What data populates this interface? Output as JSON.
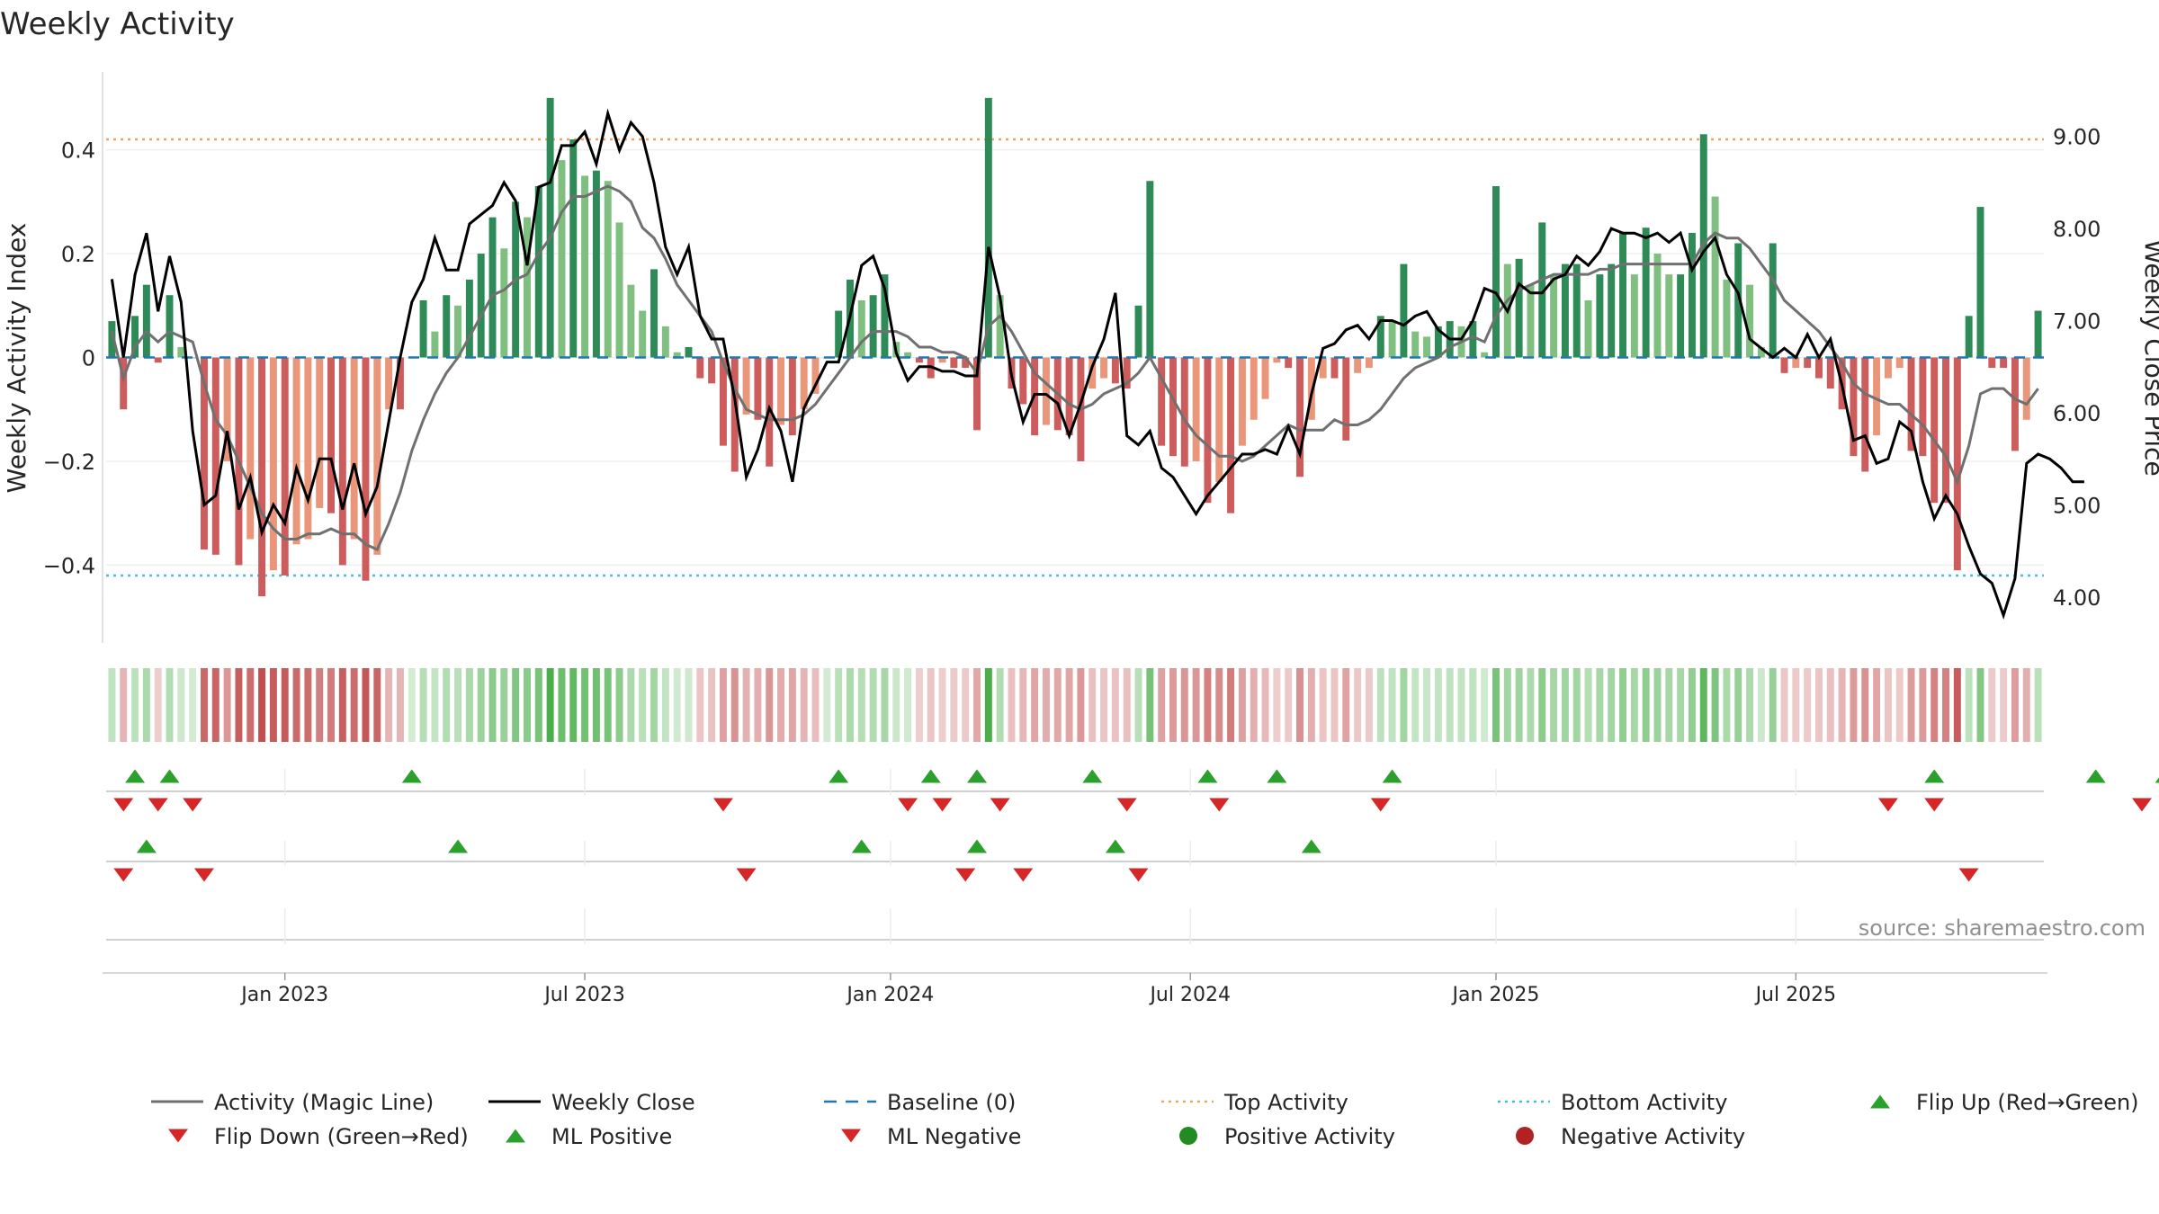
{
  "chart_data": {
    "type": "bar",
    "title": "Weekly Activity",
    "ylabel_left": "Weekly Activity Index",
    "ylabel_right": "Weekly Close Price",
    "left_yticks": [
      {
        "value": 0.4,
        "label": "0.4"
      },
      {
        "value": 0.2,
        "label": "0.2"
      },
      {
        "value": 0,
        "label": "0"
      },
      {
        "value": -0.2,
        "label": "−0.2"
      },
      {
        "value": -0.4,
        "label": "−0.4"
      }
    ],
    "right_yticks": [
      {
        "value": 9,
        "label": "9.00"
      },
      {
        "value": 8,
        "label": "8.00"
      },
      {
        "value": 7,
        "label": "7.00"
      },
      {
        "value": 6,
        "label": "6.00"
      },
      {
        "value": 5,
        "label": "5.00"
      },
      {
        "value": 4,
        "label": "4.00"
      }
    ],
    "ylim_left": [
      -0.55,
      0.55
    ],
    "ylim_right": [
      3.5,
      9.7
    ],
    "xticks": [
      {
        "week": 15,
        "label": "Jan 2023"
      },
      {
        "week": 41,
        "label": "Jul 2023"
      },
      {
        "week": 67.5,
        "label": "Jan 2024"
      },
      {
        "week": 93.5,
        "label": "Jul 2024"
      },
      {
        "week": 120,
        "label": "Jan 2025"
      },
      {
        "week": 146,
        "label": "Jul 2025"
      }
    ],
    "top_activity": 0.42,
    "bottom_activity": -0.42,
    "baseline": 0,
    "activity": [
      0.07,
      -0.1,
      0.08,
      0.14,
      -0.01,
      0.12,
      0.02,
      0,
      -0.37,
      -0.38,
      -0.2,
      -0.4,
      -0.35,
      -0.46,
      -0.41,
      -0.42,
      -0.36,
      -0.35,
      -0.29,
      -0.3,
      -0.4,
      -0.35,
      -0.43,
      -0.38,
      -0.1,
      -0.1,
      0,
      0.11,
      0.05,
      0.12,
      0.1,
      0.15,
      0.2,
      0.27,
      0.21,
      0.3,
      0.27,
      0.33,
      0.5,
      0.38,
      0.42,
      0.35,
      0.36,
      0.34,
      0.26,
      0.14,
      0.09,
      0.17,
      0.06,
      0.01,
      0.02,
      -0.04,
      -0.05,
      -0.17,
      -0.22,
      -0.11,
      -0.12,
      -0.21,
      -0.13,
      -0.15,
      -0.1,
      -0.07,
      0,
      0.09,
      0.15,
      0.11,
      0.12,
      0.16,
      0.03,
      0.01,
      -0.01,
      -0.04,
      -0.01,
      -0.02,
      -0.02,
      -0.14,
      0.5,
      0.12,
      -0.06,
      -0.09,
      -0.15,
      -0.13,
      -0.14,
      -0.15,
      -0.2,
      -0.06,
      -0.04,
      -0.05,
      -0.06,
      0.1,
      0.34,
      -0.17,
      -0.19,
      -0.21,
      -0.2,
      -0.28,
      -0.24,
      -0.3,
      -0.17,
      -0.12,
      -0.08,
      -0.01,
      -0.02,
      -0.23,
      -0.12,
      -0.04,
      -0.04,
      -0.16,
      -0.03,
      -0.02,
      0.08,
      0.07,
      0.18,
      0.05,
      0.04,
      0.06,
      0.07,
      0.06,
      0.07,
      0.01,
      0.33,
      0.18,
      0.19,
      0.14,
      0.26,
      0.16,
      0.18,
      0.18,
      0.11,
      0.16,
      0.18,
      0.24,
      0.16,
      0.25,
      0.2,
      0.16,
      0.16,
      0.24,
      0.43,
      0.31,
      0.15,
      0.22,
      0.14,
      0.02,
      0.22,
      -0.03,
      -0.02,
      -0.02,
      -0.04,
      -0.06,
      -0.1,
      -0.19,
      -0.22,
      -0.15,
      -0.04,
      -0.02,
      -0.18,
      -0.19,
      -0.28,
      -0.28,
      -0.41,
      0.08,
      0.29,
      -0.02,
      -0.02,
      -0.18,
      -0.12,
      0.09
    ],
    "magic_line": [
      0.05,
      -0.04,
      0.02,
      0.05,
      0.03,
      0.05,
      0.04,
      0.03,
      -0.05,
      -0.12,
      -0.15,
      -0.2,
      -0.25,
      -0.3,
      -0.33,
      -0.35,
      -0.35,
      -0.34,
      -0.34,
      -0.33,
      -0.34,
      -0.34,
      -0.36,
      -0.37,
      -0.32,
      -0.26,
      -0.18,
      -0.12,
      -0.07,
      -0.03,
      0,
      0.04,
      0.08,
      0.12,
      0.13,
      0.15,
      0.16,
      0.2,
      0.23,
      0.28,
      0.31,
      0.31,
      0.32,
      0.33,
      0.32,
      0.3,
      0.25,
      0.23,
      0.19,
      0.14,
      0.11,
      0.08,
      0.05,
      -0.01,
      -0.06,
      -0.1,
      -0.11,
      -0.12,
      -0.12,
      -0.12,
      -0.11,
      -0.09,
      -0.06,
      -0.03,
      0,
      0.03,
      0.05,
      0.05,
      0.05,
      0.04,
      0.02,
      0.02,
      0.01,
      0.01,
      0,
      -0.03,
      0.06,
      0.08,
      0.05,
      0.01,
      -0.03,
      -0.05,
      -0.07,
      -0.09,
      -0.1,
      -0.09,
      -0.07,
      -0.06,
      -0.05,
      -0.03,
      0,
      -0.04,
      -0.08,
      -0.12,
      -0.15,
      -0.17,
      -0.19,
      -0.19,
      -0.2,
      -0.19,
      -0.17,
      -0.15,
      -0.13,
      -0.14,
      -0.14,
      -0.14,
      -0.12,
      -0.13,
      -0.13,
      -0.12,
      -0.1,
      -0.07,
      -0.04,
      -0.02,
      -0.01,
      0,
      0.02,
      0.03,
      0.04,
      0.03,
      0.08,
      0.11,
      0.13,
      0.14,
      0.15,
      0.16,
      0.16,
      0.16,
      0.16,
      0.17,
      0.17,
      0.18,
      0.18,
      0.18,
      0.18,
      0.18,
      0.18,
      0.18,
      0.22,
      0.24,
      0.23,
      0.23,
      0.21,
      0.18,
      0.15,
      0.11,
      0.09,
      0.07,
      0.05,
      0.02,
      -0.01,
      -0.05,
      -0.07,
      -0.08,
      -0.09,
      -0.09,
      -0.11,
      -0.13,
      -0.16,
      -0.19,
      -0.24,
      -0.17,
      -0.07,
      -0.06,
      -0.06,
      -0.08,
      -0.09,
      -0.06
    ],
    "weekly_close": [
      7.45,
      6.6,
      7.5,
      7.95,
      7.1,
      7.7,
      7.2,
      5.8,
      5,
      5.1,
      5.8,
      4.95,
      5.3,
      4.7,
      5,
      4.8,
      5.4,
      5.05,
      5.5,
      5.5,
      4.95,
      5.45,
      4.9,
      5.2,
      5.9,
      6.6,
      7.2,
      7.45,
      7.9,
      7.55,
      7.55,
      8.05,
      8.15,
      8.25,
      8.5,
      8.3,
      7.6,
      8.45,
      8.5,
      8.9,
      8.9,
      9.05,
      8.7,
      9.25,
      8.85,
      9.15,
      9.0,
      8.5,
      7.8,
      7.5,
      7.8,
      7.05,
      6.8,
      6.8,
      6.15,
      5.3,
      5.6,
      6.05,
      5.8,
      5.25,
      6.05,
      6.3,
      6.55,
      6.55,
      7.05,
      7.6,
      7.7,
      7.35,
      6.65,
      6.35,
      6.5,
      6.5,
      6.45,
      6.45,
      6.4,
      6.4,
      7.8,
      7.25,
      6.4,
      5.9,
      6.2,
      6.2,
      6.1,
      5.75,
      6.1,
      6.5,
      6.8,
      7.3,
      5.75,
      5.65,
      5.8,
      5.4,
      5.3,
      5.1,
      4.9,
      5.1,
      5.25,
      5.4,
      5.55,
      5.55,
      5.6,
      5.55,
      5.85,
      5.55,
      6.2,
      6.7,
      6.75,
      6.9,
      6.95,
      6.8,
      7.0,
      7.0,
      6.95,
      7.05,
      7.1,
      6.9,
      6.8,
      6.8,
      7.0,
      7.35,
      7.3,
      7.1,
      7.4,
      7.3,
      7.3,
      7.45,
      7.5,
      7.7,
      7.6,
      7.75,
      8.0,
      7.95,
      7.95,
      7.9,
      7.95,
      7.85,
      7.95,
      7.55,
      7.75,
      7.9,
      7.5,
      7.3,
      6.8,
      6.7,
      6.6,
      6.7,
      6.6,
      6.85,
      6.6,
      6.8,
      6.3,
      5.7,
      5.75,
      5.45,
      5.5,
      5.9,
      5.8,
      5.25,
      4.85,
      5.1,
      4.9,
      4.55,
      4.25,
      4.15,
      3.8,
      4.2,
      5.45,
      5.55,
      5.5,
      5.4,
      5.25,
      5.25
    ],
    "flip_up_weeks": [
      2,
      5,
      26,
      63,
      71,
      75,
      85,
      95,
      101,
      111,
      158,
      172,
      178
    ],
    "flip_down_weeks": [
      1,
      4,
      7,
      53,
      69,
      72,
      77,
      88,
      96,
      110,
      154,
      158,
      176
    ],
    "ml_positive_weeks": [
      3,
      30,
      65,
      75,
      87,
      104
    ],
    "ml_negative_weeks": [
      1,
      8,
      55,
      74,
      79,
      89,
      161
    ],
    "legend": [
      {
        "label": "Activity (Magic Line)",
        "kind": "line",
        "color": "#707070",
        "dash": "solid"
      },
      {
        "label": "Weekly Close",
        "kind": "line",
        "color": "#000000",
        "dash": "solid"
      },
      {
        "label": "Baseline (0)",
        "kind": "line",
        "color": "#1f77b4",
        "dash": "long"
      },
      {
        "label": "Top Activity",
        "kind": "line",
        "color": "#f4a460",
        "dash": "dot"
      },
      {
        "label": "Bottom Activity",
        "kind": "line",
        "color": "#40c0e0",
        "dash": "dot"
      },
      {
        "label": "Flip Up (Red→Green)",
        "kind": "tri-up",
        "color": "#2ca02c"
      },
      {
        "label": "Flip Down (Green→Red)",
        "kind": "tri-down",
        "color": "#d62728"
      },
      {
        "label": "ML Positive",
        "kind": "tri-up",
        "color": "#2ca02c"
      },
      {
        "label": "ML Negative",
        "kind": "tri-down",
        "color": "#d62728"
      },
      {
        "label": "Positive Activity",
        "kind": "dot",
        "color": "#228b22"
      },
      {
        "label": "Negative Activity",
        "kind": "dot",
        "color": "#b22222"
      }
    ],
    "source": "source: sharemaestro.com"
  }
}
